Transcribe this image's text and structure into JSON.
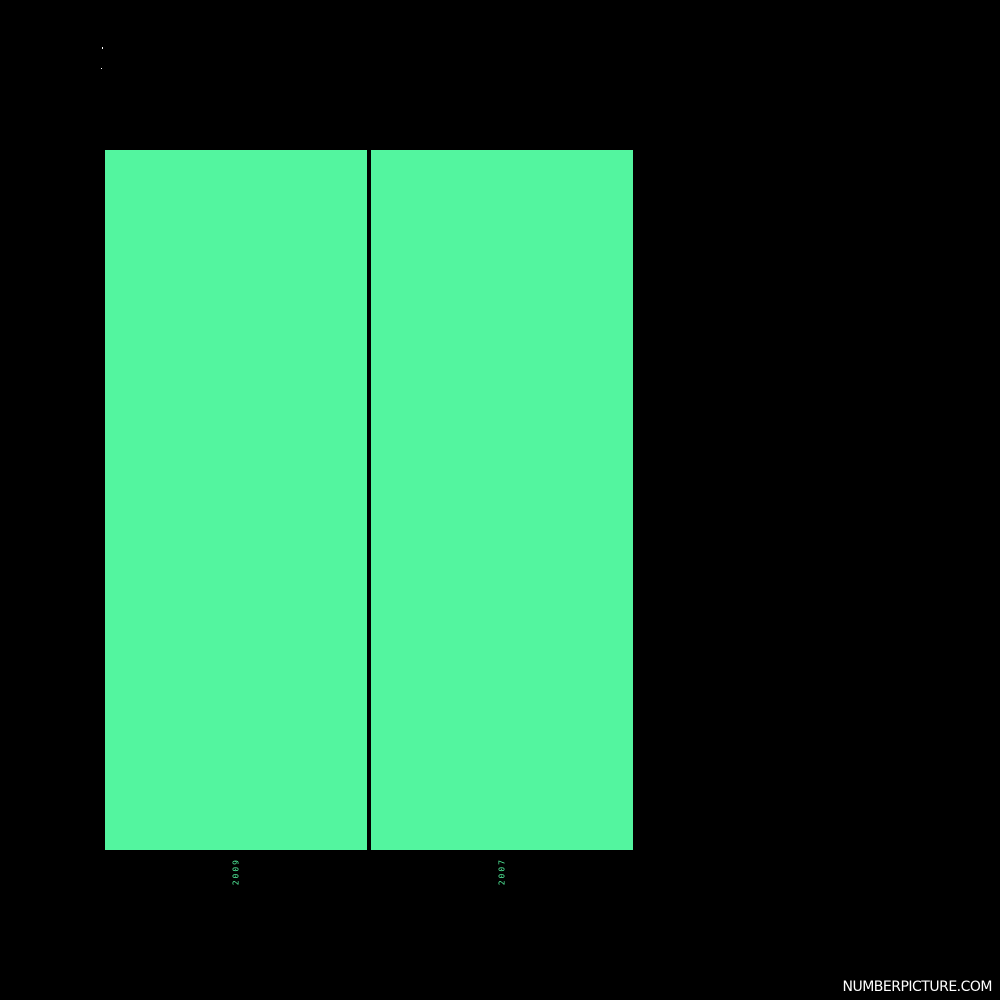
{
  "chart_data": {
    "type": "bar",
    "categories": [
      "2009",
      "2007"
    ],
    "values": [
      1,
      1
    ],
    "ylim": [
      0,
      1
    ],
    "grid": false,
    "colors": {
      "bar": "#53f59f",
      "background": "#000000",
      "tick_label": "#53f59f"
    }
  },
  "footer": {
    "brand": "NUMBERPICTURE.COM"
  }
}
